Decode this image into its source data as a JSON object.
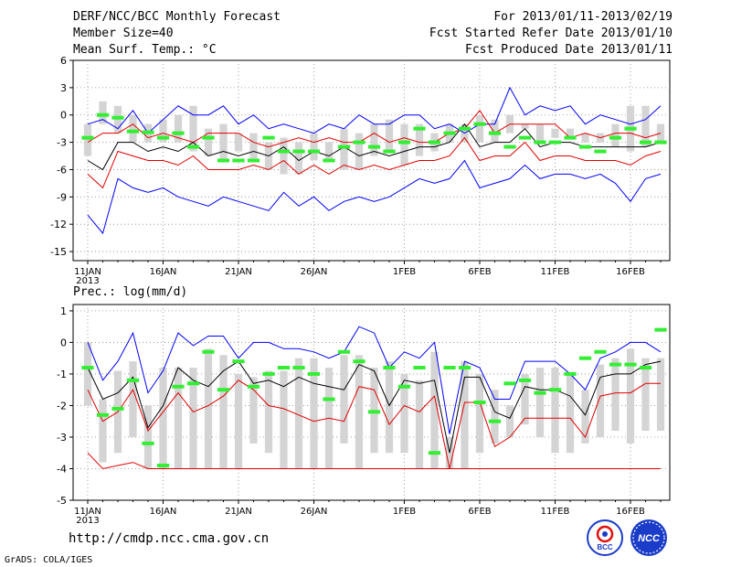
{
  "header": {
    "title": "DERF/NCC/BCC Monthly Forecast",
    "member_size": "Member Size=40",
    "variable_temp": "Mean Surf. Temp.: °C",
    "forecast_period": "For 2013/01/11-2013/02/19",
    "start_refer_date": "Fcst Started Refer Date 2013/01/10",
    "produced_date": "Fcst Produced Date 2013/01/11"
  },
  "footer": {
    "url": "http://cmdp.ncc.cma.gov.cn",
    "credit": "GrADS: COLA/IGES",
    "logo_left": "BCC",
    "logo_right": "NCC"
  },
  "colors": {
    "max_line": "#0000ff",
    "percentile_line": "#e00000",
    "median_line": "#000000",
    "box": "#d4d4d4",
    "mean_marker": "#33ee33"
  },
  "chart_data": [
    {
      "type": "box-line",
      "title": "Mean Surf. Temp.: °C",
      "x_days": 39,
      "xtick_labels": [
        "11JAN",
        "16JAN",
        "21JAN",
        "26JAN",
        "1FEB",
        "6FEB",
        "11FEB",
        "16FEB"
      ],
      "xtick_year": "2013",
      "xtick_days": [
        0,
        5,
        10,
        15,
        21,
        26,
        31,
        36
      ],
      "yticks": [
        6,
        3,
        0,
        -3,
        -6,
        -9,
        -12,
        -15
      ],
      "ylim": [
        -16,
        6
      ],
      "series": [
        {
          "name": "max",
          "color": "blue",
          "values": [
            -1,
            -0.5,
            -1.5,
            0.5,
            -2,
            -0.5,
            1,
            0,
            0,
            1,
            -1,
            0,
            -1.5,
            -1,
            -1.5,
            -2,
            -1,
            -1.5,
            0,
            -1,
            -1,
            0,
            0,
            -1.5,
            -1,
            -2,
            -1,
            -1,
            3,
            0,
            1,
            0.5,
            1,
            -1,
            0,
            -0.5,
            -1,
            -0.5,
            1,
            -1.5,
            0,
            0.5,
            2,
            0.5,
            0,
            0
          ]
        },
        {
          "name": "upper",
          "color": "red",
          "values": [
            -3,
            -2,
            -2,
            -1,
            -2.5,
            -2,
            -2.5,
            -3,
            -2,
            -2,
            -2,
            -3,
            -3.5,
            -3,
            -2.5,
            -3,
            -2.5,
            -3,
            -3,
            -2,
            -3,
            -2.5,
            -3,
            -3,
            -2,
            -1.5,
            0.5,
            -2,
            -1,
            -1,
            -1,
            -1,
            -2.5,
            -2,
            -2.5,
            -2,
            -2,
            -2.5,
            -2,
            -1,
            -1,
            -1,
            -1,
            -2,
            -1.5,
            -1
          ]
        },
        {
          "name": "median",
          "color": "black",
          "values": [
            -5,
            -6,
            -3,
            -3,
            -4,
            -3.5,
            -4,
            -3,
            -4.5,
            -4,
            -4.5,
            -4,
            -4.5,
            -3.5,
            -5,
            -4,
            -4.5,
            -3.5,
            -4.5,
            -4,
            -4.5,
            -4,
            -3.5,
            -3.5,
            -3,
            -1,
            -3.5,
            -3,
            -3,
            -1.5,
            -3.5,
            -3,
            -3,
            -3.5,
            -3.5,
            -3.5,
            -3.5,
            -3.5,
            -3,
            -3
          ]
        },
        {
          "name": "lower",
          "color": "red",
          "values": [
            -6.5,
            -8,
            -4,
            -4.5,
            -5,
            -5,
            -5.5,
            -4.5,
            -6,
            -6,
            -6,
            -5.5,
            -6,
            -5,
            -6.5,
            -5.5,
            -6.5,
            -5.5,
            -6,
            -5.5,
            -6,
            -5.5,
            -5,
            -5,
            -4.5,
            -2.5,
            -5,
            -4.5,
            -4.5,
            -3,
            -5,
            -4.5,
            -4.5,
            -5,
            -5,
            -5,
            -5.5,
            -4.5,
            -4,
            -4
          ]
        },
        {
          "name": "min",
          "color": "blue",
          "values": [
            -11,
            -13,
            -7,
            -8,
            -8.5,
            -8,
            -9,
            -9.5,
            -10,
            -9,
            -9.5,
            -10,
            -10.5,
            -8.5,
            -10,
            -9,
            -10.5,
            -9.5,
            -9,
            -9.5,
            -9,
            -8,
            -7,
            -7.5,
            -7,
            -5,
            -8,
            -7.5,
            -7,
            -5.5,
            -7,
            -6.5,
            -6.5,
            -7,
            -6.5,
            -7.5,
            -9.5,
            -7,
            -6.5,
            -6.5
          ]
        }
      ],
      "boxes_low": [
        -4.5,
        -1,
        -2,
        -3,
        -3,
        -3,
        -3,
        -4,
        -4.5,
        -5,
        -4,
        -5,
        -6,
        -6.5,
        -6.5,
        -5,
        -5,
        -6,
        -6,
        -4.5,
        -4,
        -5.5,
        -4.5,
        -4,
        -3,
        -3,
        -3,
        -3,
        -2,
        -1.5,
        -3,
        -2.5,
        -2.5,
        -3,
        -3,
        -3.5,
        -4,
        -3.5,
        -3,
        -3.5
      ],
      "boxes_high": [
        -1,
        1.5,
        1,
        0,
        -1,
        -0.5,
        0,
        1,
        -1.5,
        -1,
        -2,
        -2,
        -3,
        -2.5,
        -3,
        -2,
        -3,
        -1.5,
        -2,
        -1,
        -0.5,
        -1,
        -1,
        -2,
        -1,
        -1,
        0,
        -0.5,
        0,
        -1,
        -1,
        -1.5,
        -1.5,
        -2,
        -2,
        -1,
        1,
        1,
        -1,
        -1.5
      ],
      "mean_markers": [
        -2.5,
        0,
        -0.3,
        -1.8,
        -1.9,
        -2.5,
        -2,
        -3.5,
        -2.5,
        -5,
        -5,
        -5,
        -2.5,
        -4,
        -4,
        -4,
        -5,
        -3.5,
        -3,
        -3.5,
        -4,
        -3,
        -1.5,
        -3,
        -2,
        -1.5,
        -1,
        -2,
        -3.5,
        -2.5,
        -3,
        -3,
        -2.5,
        -3.5,
        -4,
        -2.5,
        -1.5,
        -3,
        -3,
        -3
      ]
    },
    {
      "type": "box-line",
      "title": "Prec.: log(mm/d)",
      "x_days": 39,
      "xtick_labels": [
        "11JAN",
        "16JAN",
        "21JAN",
        "26JAN",
        "1FEB",
        "6FEB",
        "11FEB",
        "16FEB"
      ],
      "xtick_year": "2013",
      "xtick_days": [
        0,
        5,
        10,
        15,
        21,
        26,
        31,
        36
      ],
      "yticks": [
        1,
        0,
        -1,
        -2,
        -3,
        -4,
        -5
      ],
      "ylim": [
        -5,
        1.2
      ],
      "series": [
        {
          "name": "max",
          "color": "blue",
          "values": [
            0,
            -1.2,
            -0.6,
            0.3,
            -1.6,
            -0.9,
            0.3,
            -0.1,
            0.2,
            0.2,
            -0.5,
            0,
            0,
            -0.2,
            -0.2,
            -0.3,
            -0.5,
            -0.3,
            0.5,
            0.3,
            -0.8,
            -0.3,
            -0.5,
            0,
            -2.9,
            -0.6,
            -0.8,
            -1.8,
            -1.8,
            -0.6,
            -0.6,
            -0.6,
            -1,
            -1.5,
            -0.5,
            -0.3,
            0,
            0,
            -0.3,
            0.8,
            0
          ]
        },
        {
          "name": "median",
          "color": "black",
          "values": [
            -0.8,
            -1.8,
            -1.6,
            -1.1,
            -2.7,
            -2,
            -0.8,
            -1.2,
            -1.4,
            -0.9,
            -0.6,
            -1.3,
            -1.2,
            -1.4,
            -1.1,
            -1.3,
            -1.4,
            -1.5,
            -0.7,
            -0.9,
            -2,
            -1.2,
            -1.3,
            -1.2,
            -3.5,
            -1.1,
            -1.1,
            -2.2,
            -2.4,
            -1.4,
            -1.5,
            -1.5,
            -1.7,
            -2.3,
            -1.1,
            -1,
            -1,
            -0.7,
            -0.6,
            0,
            -0.6
          ]
        },
        {
          "name": "upper",
          "color": "red",
          "values": [
            -1.5,
            -2.5,
            -2.2,
            -1.5,
            -2.8,
            -2.2,
            -1.6,
            -2.2,
            -2,
            -1.7,
            -1.2,
            -1.5,
            -2,
            -2.1,
            -2.3,
            -2.5,
            -2.4,
            -2.5,
            -1.4,
            -1.5,
            -2.6,
            -2,
            -2.2,
            -1.7,
            -4,
            -1.9,
            -1.9,
            -3.3,
            -3,
            -2.4,
            -2.4,
            -2.4,
            -2.4,
            -3,
            -1.7,
            -1.6,
            -1.6,
            -1.3,
            -1.3,
            -0.7,
            -1.5
          ]
        },
        {
          "name": "lower",
          "color": "red",
          "values": [
            -3.5,
            -4,
            -3.9,
            -3.8,
            -4,
            -4,
            -4,
            -4,
            -4,
            -4,
            -4,
            -4,
            -4,
            -4,
            -4,
            -4,
            -4,
            -4,
            -4,
            -4,
            -4,
            -4,
            -4,
            -4,
            -4,
            -4,
            -4,
            -4,
            -4,
            -4,
            -4,
            -4,
            -4,
            -4,
            -4,
            -4,
            -4,
            -4,
            -4,
            -4,
            -4
          ]
        }
      ],
      "boxes_low": [
        -2,
        -3.8,
        -3.5,
        -3,
        -4,
        -4,
        -4,
        -4,
        -4,
        -4,
        -4,
        -3.2,
        -3.5,
        -4,
        -4,
        -4,
        -4,
        -3.2,
        -4,
        -3.5,
        -3.5,
        -3.5,
        -4,
        -4,
        -4,
        -4,
        -3.5,
        -3.2,
        -3,
        -2.6,
        -3,
        -3.5,
        -3.5,
        -3.2,
        -3,
        -2.8,
        -3.2,
        -2.8,
        -2.8,
        -3.2
      ],
      "boxes_high": [
        0,
        -1.8,
        -0.9,
        -0.6,
        -2,
        -0.8,
        -0.8,
        -0.8,
        -0.2,
        -0.4,
        -1,
        -1.1,
        -0.9,
        -0.9,
        -0.5,
        -0.5,
        -0.8,
        -0.4,
        -0.4,
        -0.8,
        -0.6,
        -1,
        -1.2,
        -0.3,
        -3,
        -0.6,
        -1,
        -1.5,
        -2,
        -1,
        -0.8,
        -0.8,
        -1,
        -1.5,
        -0.7,
        -0.5,
        -0.2,
        -0.5,
        -0.5,
        0.3
      ],
      "mean_markers": [
        -0.8,
        -2.3,
        -2.1,
        -1.2,
        -3.2,
        -3.9,
        -1.4,
        -1.3,
        -0.3,
        -1.5,
        -0.6,
        -1.4,
        -1,
        -0.8,
        -0.8,
        -1,
        -1.8,
        -0.3,
        -0.6,
        -2.2,
        -0.8,
        -1.4,
        -0.8,
        -3.5,
        -0.8,
        -0.8,
        -1.9,
        -2.5,
        -1.3,
        -1.2,
        -1.6,
        -1.5,
        -1,
        -0.5,
        -0.3,
        -0.7,
        -0.7,
        -0.8,
        0.4,
        -0.6
      ]
    }
  ]
}
